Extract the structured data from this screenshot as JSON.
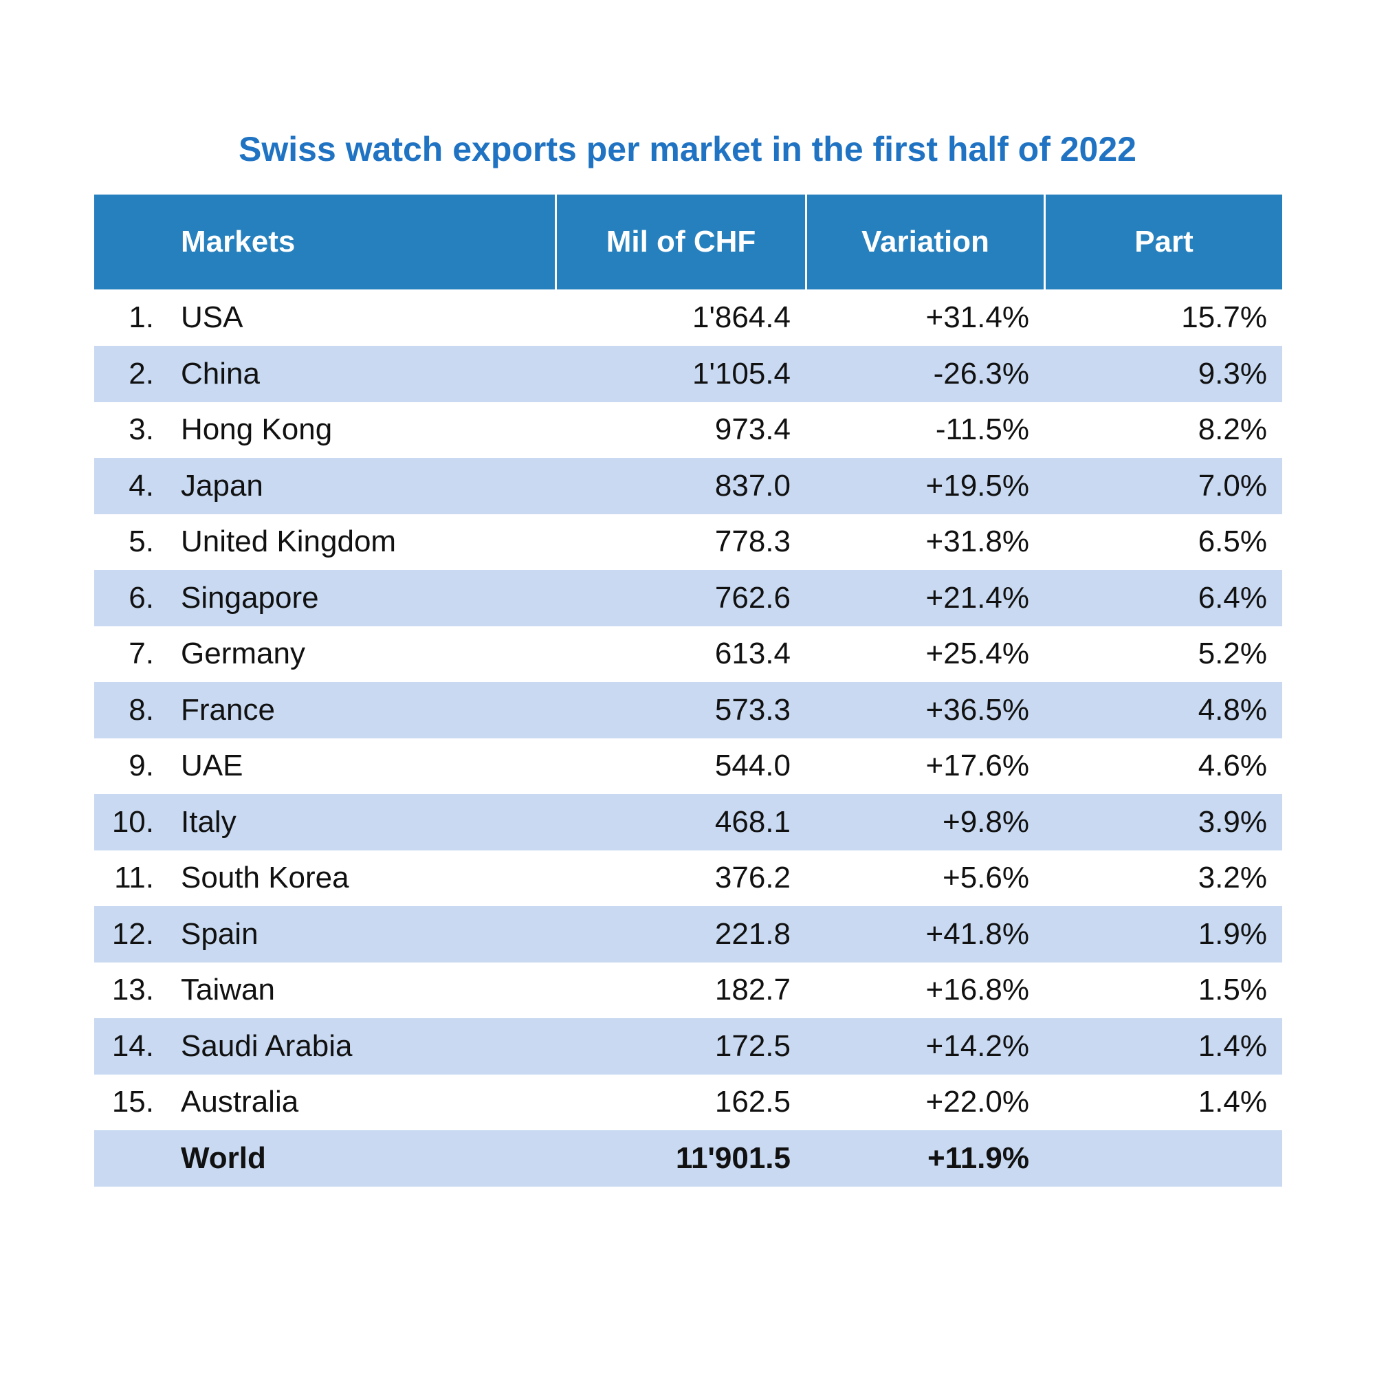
{
  "header": {
    "title": "Swiss watch exports per market in the first half of 2022"
  },
  "table": {
    "columns": [
      "Markets",
      "Mil of CHF",
      "Variation",
      "Part"
    ],
    "rows": [
      [
        "1.",
        "USA",
        "1'864.4",
        "+31.4%",
        "15.7%"
      ],
      [
        "2.",
        "China",
        "1'105.4",
        "-26.3%",
        "9.3%"
      ],
      [
        "3.",
        "Hong Kong",
        "973.4",
        "-11.5%",
        "8.2%"
      ],
      [
        "4.",
        "Japan",
        "837.0",
        "+19.5%",
        "7.0%"
      ],
      [
        "5.",
        "United Kingdom",
        "778.3",
        "+31.8%",
        "6.5%"
      ],
      [
        "6.",
        "Singapore",
        "762.6",
        "+21.4%",
        "6.4%"
      ],
      [
        "7.",
        "Germany",
        "613.4",
        "+25.4%",
        "5.2%"
      ],
      [
        "8.",
        "France",
        "573.3",
        "+36.5%",
        "4.8%"
      ],
      [
        "9.",
        "UAE",
        "544.0",
        "+17.6%",
        "4.6%"
      ],
      [
        "10.",
        "Italy",
        "468.1",
        "+9.8%",
        "3.9%"
      ],
      [
        "11.",
        "South Korea",
        "376.2",
        "+5.6%",
        "3.2%"
      ],
      [
        "12.",
        "Spain",
        "221.8",
        "+41.8%",
        "1.9%"
      ],
      [
        "13.",
        "Taiwan",
        "182.7",
        "+16.8%",
        "1.5%"
      ],
      [
        "14.",
        "Saudi Arabia",
        "172.5",
        "+14.2%",
        "1.4%"
      ],
      [
        "15.",
        "Australia",
        "162.5",
        "+22.0%",
        "1.4%"
      ]
    ],
    "total": [
      "World",
      "11'901.5",
      "+11.9%"
    ]
  }
}
